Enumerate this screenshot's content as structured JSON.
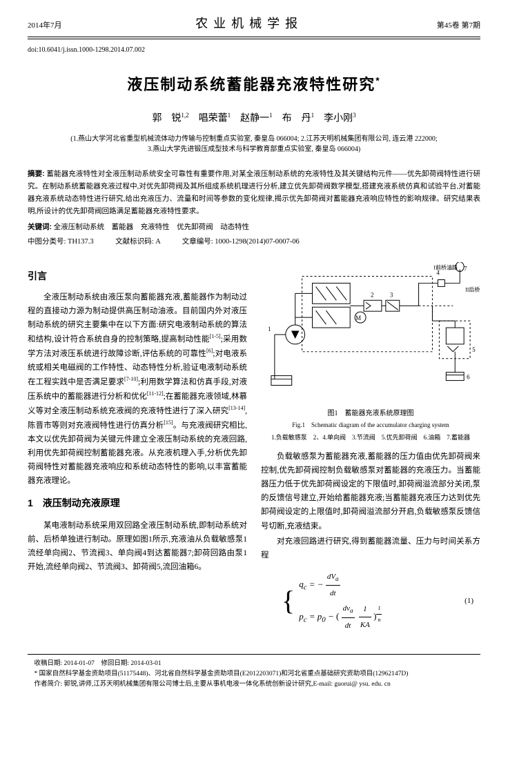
{
  "header": {
    "date": "2014年7月",
    "journal": "农业机械学报",
    "volume": "第45卷 第7期"
  },
  "doi": "doi:10.6041/j.issn.1000-1298.2014.07.002",
  "title": "液压制动系统蓄能器充液特性研究",
  "title_sup": "*",
  "authors": "郭　锐<sup>1,2</sup>　唱荣蕾<sup>1</sup>　赵静一<sup>1</sup>　布　丹<sup>1</sup>　李小刚<sup>3</sup>",
  "affiliations": "(1.燕山大学河北省重型机械流体动力传输与控制重点实验室, 秦皇岛 066004; 2.江苏天明机械集团有限公司, 连云港 222000;<br>3.燕山大学先进锻压成型技术与科学教育部重点实验室, 秦皇岛 066004)",
  "abstract_label": "摘要:",
  "abstract_text": "蓄能器充液特性对全液压制动系统安全可靠性有重要作用,对某全液压制动系统的充液特性及其关键结构元件——优先卸荷阀特性进行研究。在制动系统蓄能器充液过程中,对优先卸荷阀及其所组成系统机理进行分析,建立优先卸荷阀数学模型,搭建充液系统仿真和试验平台,对蓄能器充液系统动态特性进行研究,给出充液压力、流量和时间等参数的变化规律,揭示优先卸荷阀对蓄能器充液响应特性的影响规律。研究结果表明,所设计的优先卸荷阀回路满足蓄能器充液特性要求。",
  "keywords_label": "关键词:",
  "keywords_text": "全液压制动系统　蓄能器　充液特性　优先卸荷阀　动态特性",
  "classification": "中图分类号: TH137.3　　　文献标识码: A　　　文章编号: 1000-1298(2014)07-0007-06",
  "intro_title": "引言",
  "intro_p1": "全液压制动系统由液压泵向蓄能器充液,蓄能器作为制动过程的直接动力源为制动提供高压制动油液。目前国内外对液压制动系统的研究主要集中在以下方面:研究电液制动系统的算法和结构,设计符合系统自身的控制策略,提高制动性能<sup>[1-5]</sup>;采用数学方法对液压系统进行故障诊断,评估系统的可靠性<sup>[6]</sup>;对电液系统或相关电磁阀的工作特性、动态特性分析,验证电液制动系统在工程实践中是否满足要求<sup>[7-10]</sup>;利用数学算法和仿真手段,对液压系统中的蓄能器进行分析和优化<sup>[11-12]</sup>;在蓄能器充液领域,林慕义等对全液压制动系统充液阀的充液特性进行了深入研究<sup>[13-14]</sup>,陈晋市等则对充液阀特性进行仿真分析<sup>[15]</sup>。与充液阀研究相比,本文以优先卸荷阀为关键元件建立全液压制动系统的充液回路,利用优先卸荷阀控制蓄能器充液。从充液机理入手,分析优先卸荷阀特性对蓄能器充液响应和系统动态特性的影响,以丰富蓄能器充液理论。",
  "section1_title": "1　液压制动充液原理",
  "section1_p1": "某电液制动系统采用双回路全液压制动系统,即制动系统对前、后桥单独进行制动。原理如图1所示,充液油从负载敏感泵1流经单向阀2、节流阀3、单向阀4到达蓄能器7;卸荷回路由泵1开始,流经单向阀2、节流阀3、卸荷阀5,流回油箱6。",
  "figure1": {
    "caption_cn": "图1　蓄能器充液系统原理图",
    "caption_en": "Fig.1　Schematic diagram of the accumulator charging system",
    "legend": "1.负载敏感泵　2、4.单向阀　3.节流阀　5.优先卸荷阀　6.油箱　7.蓄能器",
    "labels": {
      "l1": "I前桥油路",
      "l2": "II后桥油路",
      "m": "M"
    },
    "colors": {
      "stroke": "#000000",
      "dash": "#000000"
    }
  },
  "col2_p1": "负载敏感泵为蓄能器充液,蓄能器的压力值由优先卸荷阀来控制,优先卸荷阀控制负载敏感泵对蓄能器的充液压力。当蓄能器压力低于优先卸荷阀设定的下限值时,卸荷阀溢流部分关闭,泵的反馈信号建立,开始给蓄能器充液;当蓄能器充液压力达到优先卸荷阀设定的上限值时,卸荷阀溢流部分开启,负载敏感泵反馈信号切断,充液结束。",
  "col2_p2": "对充液回路进行研究,得到蓄能器流量、压力与时间关系方程",
  "equation1": {
    "line1_lhs": "q<sub>c</sub>",
    "line1_rhs_prefix": " = − ",
    "line1_frac_num": "d<i>V</i><sub>a</sub>",
    "line1_frac_den": "d<i>t</i>",
    "line2_lhs": "p<sub>c</sub>",
    "line2_rhs_prefix": " = p<sub>0</sub> − ",
    "line2_frac1_num": "d<i>v</i><sub>a</sub>",
    "line2_frac1_den": "d<i>t</i>",
    "line2_frac2_num": "1",
    "line2_frac2_den": "<i>KA</i>",
    "line2_exp_num": "1",
    "line2_exp_den": "n",
    "num": "(1)"
  },
  "footnotes": {
    "line1": "收稿日期: 2014-01-07　修回日期: 2014-03-01",
    "line2": "* 国家自然科学基金资助项目(51175448)、河北省自然科学基金资助项目(E2012203071)和河北省重点基础研究资助项目(12962147D)",
    "line3": "作者简介: 郭锐,讲师,江苏天明机械集团有限公司博士后,主要从事机电液一体化系统创新设计研究,E-mail: guorui@ ysu. edu. cn"
  }
}
